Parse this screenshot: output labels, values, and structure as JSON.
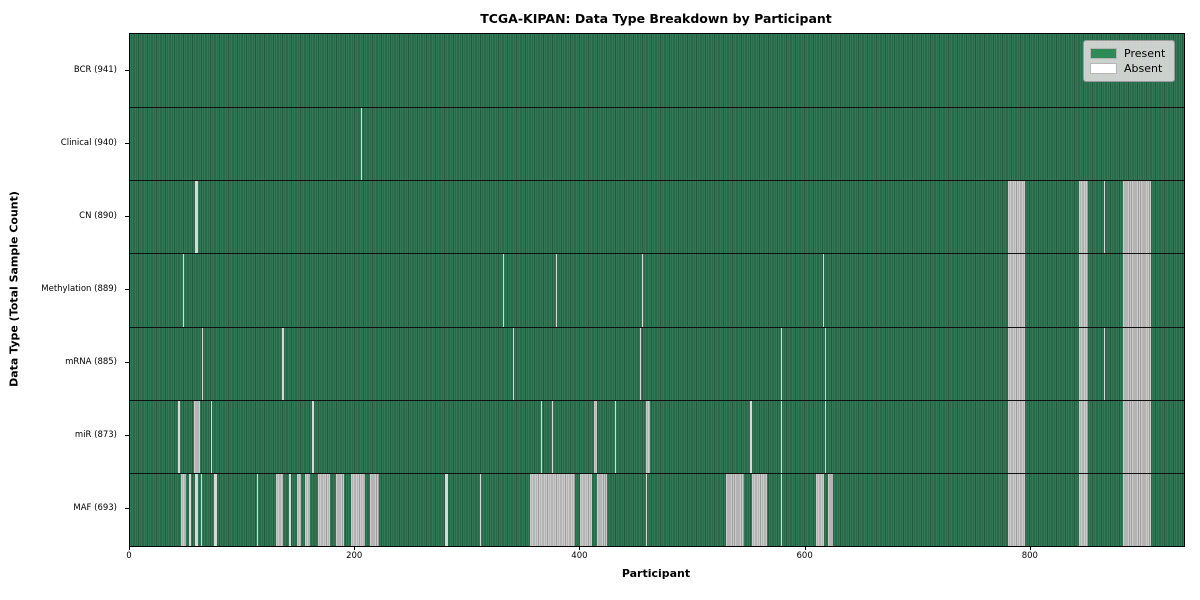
{
  "chart_data": {
    "type": "heatmap",
    "title": "TCGA-KIPAN: Data Type Breakdown by Participant",
    "xlabel": "Participant",
    "ylabel": "Data Type (Total Sample Count)",
    "x_ticks": [
      0,
      200,
      400,
      600,
      800
    ],
    "x_max": 936,
    "grid": false,
    "legend_position": "upper right",
    "colors": {
      "present": "#2e8b57",
      "present_dark": "#235a40",
      "present_light": "#327a55",
      "absent": "#ffffff",
      "absent_light": "#cbcbcb",
      "absent_mid": "#9d9d9d",
      "legend_bg": "#d9d9d9"
    },
    "legend": [
      {
        "label": "Present",
        "key": "present"
      },
      {
        "label": "Absent",
        "key": "absent"
      }
    ],
    "rows": [
      {
        "label": "BCR (941)",
        "data_type": "BCR",
        "present_count": 941,
        "absent_ranges": []
      },
      {
        "label": "Clinical (940)",
        "data_type": "Clinical",
        "present_count": 940,
        "absent_ranges": [
          [
            205,
            206
          ]
        ]
      },
      {
        "label": "CN (890)",
        "data_type": "CN",
        "present_count": 890,
        "absent_ranges": [
          [
            58,
            60
          ],
          [
            780,
            795
          ],
          [
            843,
            851
          ],
          [
            865,
            866
          ],
          [
            882,
            907
          ]
        ]
      },
      {
        "label": "Methylation (889)",
        "data_type": "Methylation",
        "present_count": 889,
        "absent_ranges": [
          [
            47,
            48
          ],
          [
            331,
            332
          ],
          [
            378,
            379
          ],
          [
            455,
            456
          ],
          [
            615,
            616
          ],
          [
            780,
            795
          ],
          [
            843,
            851
          ],
          [
            882,
            907
          ]
        ]
      },
      {
        "label": "mRNA (885)",
        "data_type": "mRNA",
        "present_count": 885,
        "absent_ranges": [
          [
            64,
            65
          ],
          [
            135,
            137
          ],
          [
            340,
            341
          ],
          [
            453,
            454
          ],
          [
            578,
            579
          ],
          [
            617,
            618
          ],
          [
            780,
            795
          ],
          [
            843,
            851
          ],
          [
            865,
            866
          ],
          [
            882,
            907
          ]
        ]
      },
      {
        "label": "miR (873)",
        "data_type": "miR",
        "present_count": 873,
        "absent_ranges": [
          [
            43,
            44
          ],
          [
            57,
            62
          ],
          [
            72,
            73
          ],
          [
            162,
            163
          ],
          [
            365,
            366
          ],
          [
            375,
            376
          ],
          [
            412,
            415
          ],
          [
            431,
            432
          ],
          [
            458,
            462
          ],
          [
            551,
            552
          ],
          [
            578,
            579
          ],
          [
            617,
            618
          ],
          [
            780,
            795
          ],
          [
            843,
            851
          ],
          [
            882,
            907
          ]
        ]
      },
      {
        "label": "MAF (693)",
        "data_type": "MAF",
        "present_count": 693,
        "absent_ranges": [
          [
            45,
            50
          ],
          [
            52,
            54
          ],
          [
            58,
            60
          ],
          [
            63,
            64
          ],
          [
            75,
            77
          ],
          [
            113,
            114
          ],
          [
            130,
            136
          ],
          [
            141,
            143
          ],
          [
            148,
            152
          ],
          [
            155,
            160
          ],
          [
            167,
            178
          ],
          [
            183,
            190
          ],
          [
            196,
            209
          ],
          [
            213,
            221
          ],
          [
            280,
            282
          ],
          [
            311,
            312
          ],
          [
            355,
            395
          ],
          [
            400,
            410
          ],
          [
            415,
            424
          ],
          [
            458,
            459
          ],
          [
            529,
            545
          ],
          [
            552,
            566
          ],
          [
            578,
            579
          ],
          [
            609,
            616
          ],
          [
            620,
            624
          ],
          [
            780,
            795
          ],
          [
            843,
            851
          ],
          [
            882,
            907
          ]
        ]
      }
    ]
  }
}
